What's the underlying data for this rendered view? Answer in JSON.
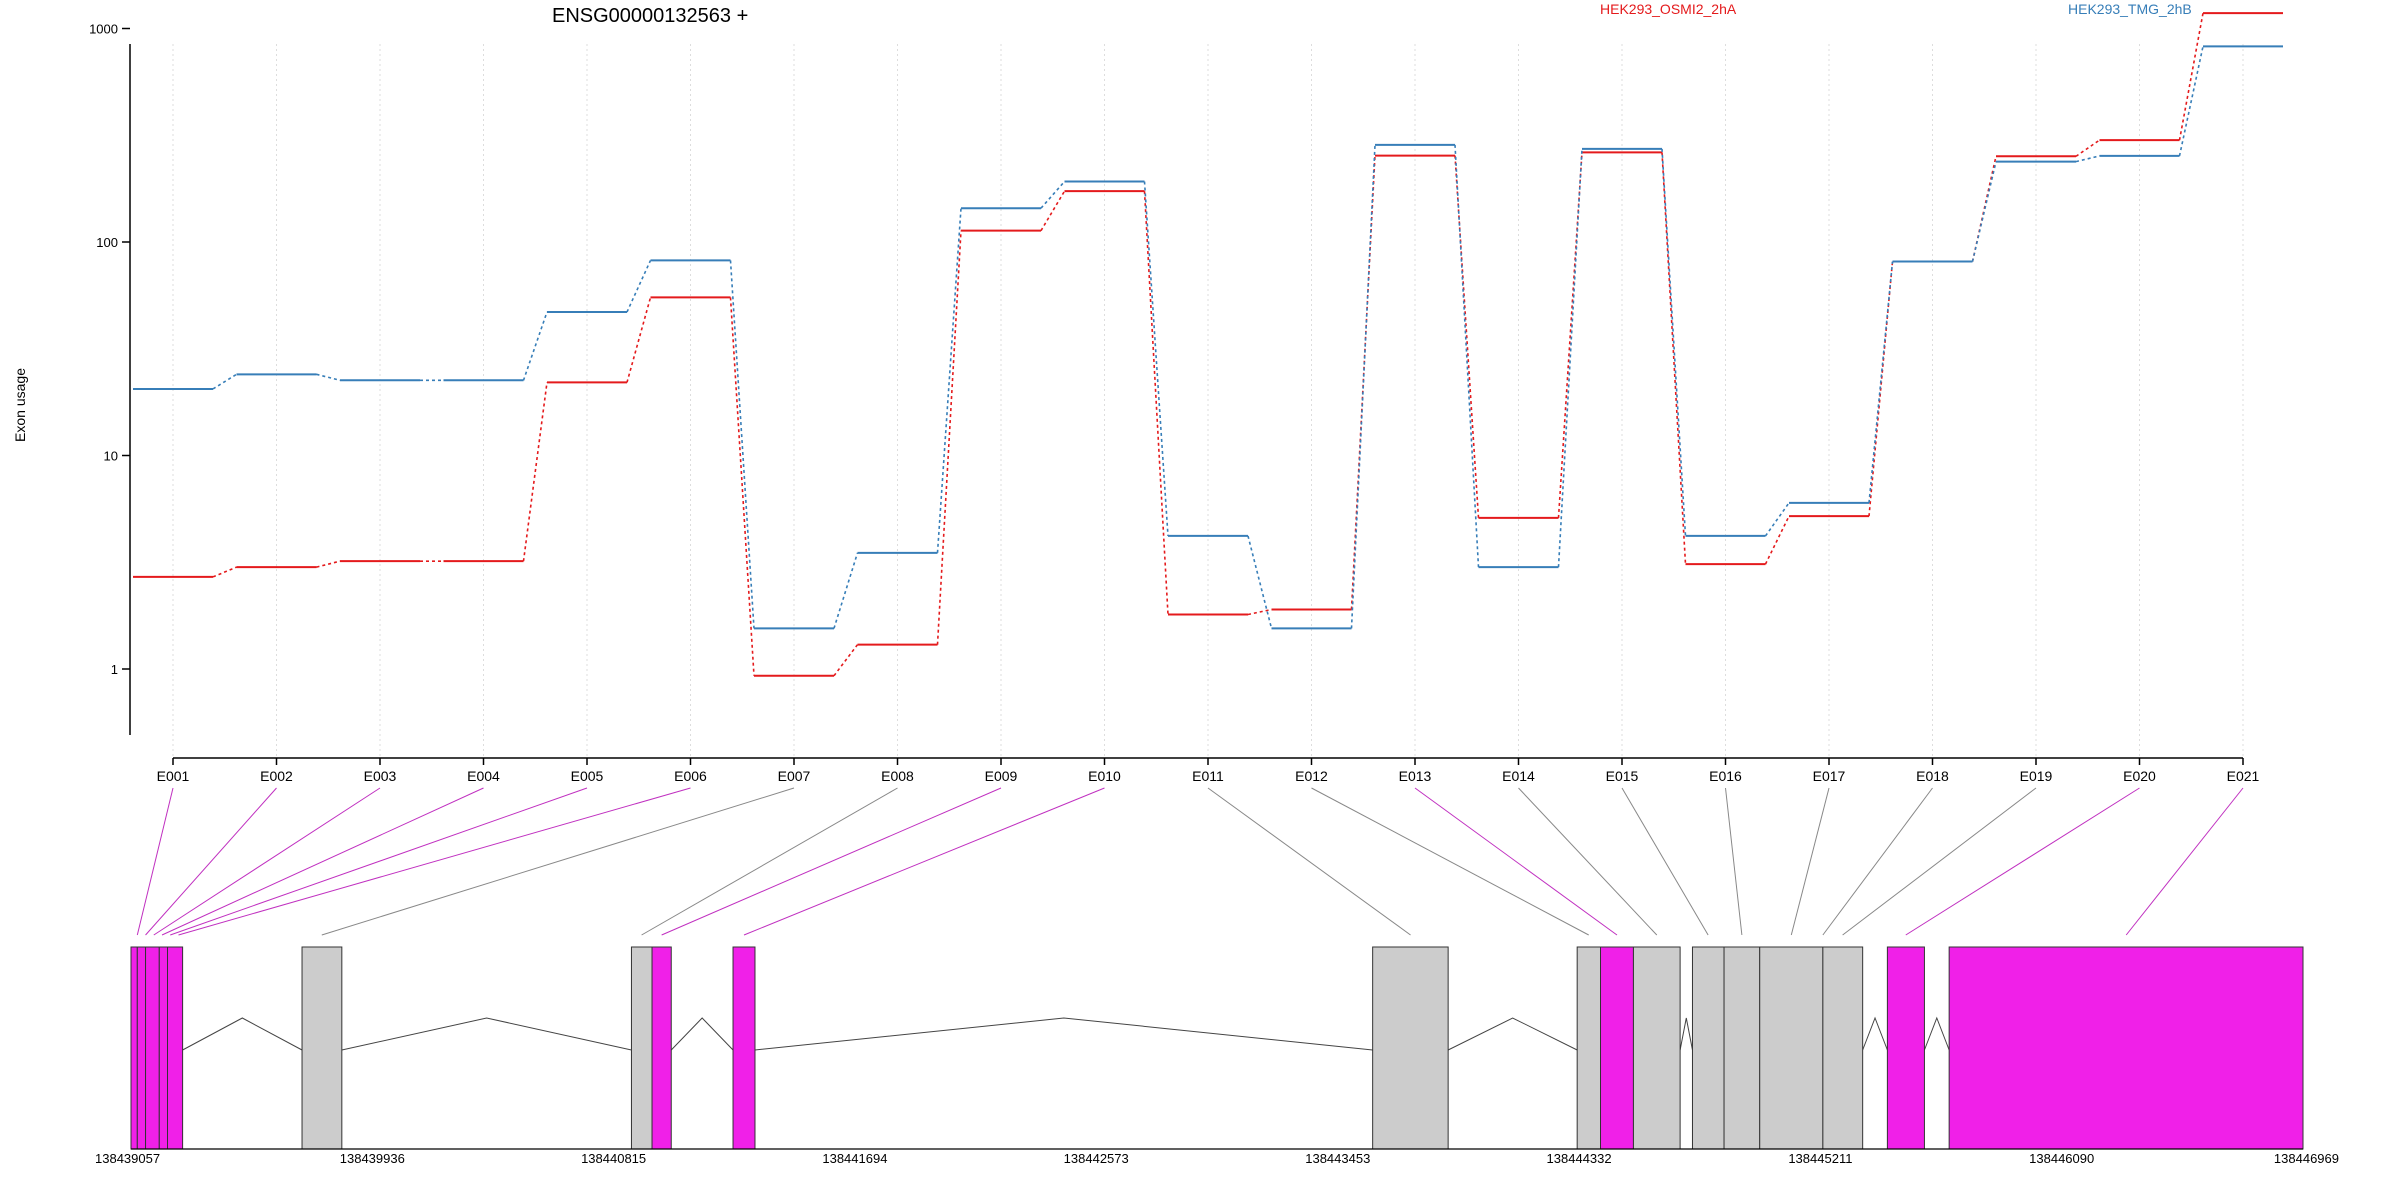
{
  "chart_data": {
    "type": "line",
    "title": "ENSG00000132563 +",
    "ylabel": "Exon usage",
    "yscale": "log",
    "ylim": [
      0.4,
      1500
    ],
    "yticks": [
      1,
      10,
      100,
      1000
    ],
    "ytick_labels": [
      "1",
      "10",
      "100",
      "1000"
    ],
    "grid": "vertical dotted lines at each exon",
    "legend_position": "top-right",
    "categories": [
      "E001",
      "E002",
      "E003",
      "E004",
      "E005",
      "E006",
      "E007",
      "E008",
      "E009",
      "E010",
      "E011",
      "E012",
      "E013",
      "E014",
      "E015",
      "E016",
      "E017",
      "E018",
      "E019",
      "E020",
      "E021"
    ],
    "series": [
      {
        "name": "HEK293_OSMI2_2hA",
        "color": "#e41a1c",
        "values": [
          2.7,
          3.0,
          3.2,
          3.2,
          22,
          55,
          0.93,
          1.3,
          113,
          173,
          1.8,
          1.9,
          254,
          5.1,
          263,
          3.1,
          5.2,
          81,
          252,
          300,
          1180
        ]
      },
      {
        "name": "HEK293_TMG_2hB",
        "color": "#377eb8",
        "values": [
          20.5,
          24,
          22.5,
          22.5,
          47,
          82,
          1.55,
          3.5,
          144,
          192,
          4.2,
          1.55,
          285,
          3.0,
          273,
          4.2,
          6.0,
          81,
          238,
          253,
          825
        ]
      }
    ],
    "gene_model": {
      "coordinate_ticks": [
        "138439057",
        "138439936",
        "138440815",
        "138441694",
        "138442573",
        "138443453",
        "138444332",
        "138445211",
        "138446090",
        "138446969"
      ],
      "coord_min": 138439057,
      "coord_max": 138446969,
      "highlight_color": "#f020e8",
      "base_color": "#cccccc",
      "exons": [
        {
          "start": 138439057,
          "end": 138439080,
          "highlight": true
        },
        {
          "start": 138439080,
          "end": 138439110,
          "highlight": true
        },
        {
          "start": 138439110,
          "end": 138439160,
          "highlight": true
        },
        {
          "start": 138439160,
          "end": 138439190,
          "highlight": true
        },
        {
          "start": 138439190,
          "end": 138439245,
          "highlight": true
        },
        {
          "start": 138439680,
          "end": 138439825,
          "highlight": false
        },
        {
          "start": 138440880,
          "end": 138440955,
          "highlight": false
        },
        {
          "start": 138440955,
          "end": 138441025,
          "highlight": true
        },
        {
          "start": 138441250,
          "end": 138441330,
          "highlight": true
        },
        {
          "start": 138443580,
          "end": 138443855,
          "highlight": false
        },
        {
          "start": 138444325,
          "end": 138444410,
          "highlight": false
        },
        {
          "start": 138444410,
          "end": 138444530,
          "highlight": true
        },
        {
          "start": 138444530,
          "end": 138444700,
          "highlight": false
        },
        {
          "start": 138444745,
          "end": 138444860,
          "highlight": false
        },
        {
          "start": 138444860,
          "end": 138444990,
          "highlight": false
        },
        {
          "start": 138444990,
          "end": 138445220,
          "highlight": false
        },
        {
          "start": 138445220,
          "end": 138445365,
          "highlight": false
        },
        {
          "start": 138445455,
          "end": 138445590,
          "highlight": true
        },
        {
          "start": 138445680,
          "end": 138446969,
          "highlight": true
        }
      ],
      "introns": [
        [
          138439245,
          138439680
        ],
        [
          138439825,
          138440880
        ],
        [
          138441025,
          138441250
        ],
        [
          138441330,
          138443580
        ],
        [
          138443855,
          138444325
        ],
        [
          138444700,
          138444745
        ],
        [
          138445365,
          138445455
        ],
        [
          138445590,
          138445680
        ]
      ],
      "exon_links": [
        {
          "exon": "E001",
          "coord": 138439080,
          "highlight": true
        },
        {
          "exon": "E002",
          "coord": 138439110,
          "highlight": true
        },
        {
          "exon": "E003",
          "coord": 138439140,
          "highlight": true
        },
        {
          "exon": "E004",
          "coord": 138439170,
          "highlight": true
        },
        {
          "exon": "E005",
          "coord": 138439200,
          "highlight": true
        },
        {
          "exon": "E006",
          "coord": 138439230,
          "highlight": true
        },
        {
          "exon": "E007",
          "coord": 138439752,
          "highlight": false
        },
        {
          "exon": "E008",
          "coord": 138440917,
          "highlight": false
        },
        {
          "exon": "E009",
          "coord": 138440990,
          "highlight": true
        },
        {
          "exon": "E010",
          "coord": 138441290,
          "highlight": true
        },
        {
          "exon": "E011",
          "coord": 138443718,
          "highlight": false
        },
        {
          "exon": "E012",
          "coord": 138444367,
          "highlight": false
        },
        {
          "exon": "E013",
          "coord": 138444470,
          "highlight": true
        },
        {
          "exon": "E014",
          "coord": 138444615,
          "highlight": false
        },
        {
          "exon": "E015",
          "coord": 138444802,
          "highlight": false
        },
        {
          "exon": "E016",
          "coord": 138444925,
          "highlight": false
        },
        {
          "exon": "E017",
          "coord": 138445105,
          "highlight": false
        },
        {
          "exon": "E018",
          "coord": 138445220,
          "highlight": false
        },
        {
          "exon": "E019",
          "coord": 138445292,
          "highlight": false
        },
        {
          "exon": "E020",
          "coord": 138445522,
          "highlight": true
        },
        {
          "exon": "E021",
          "coord": 138446325,
          "highlight": true
        }
      ]
    }
  }
}
